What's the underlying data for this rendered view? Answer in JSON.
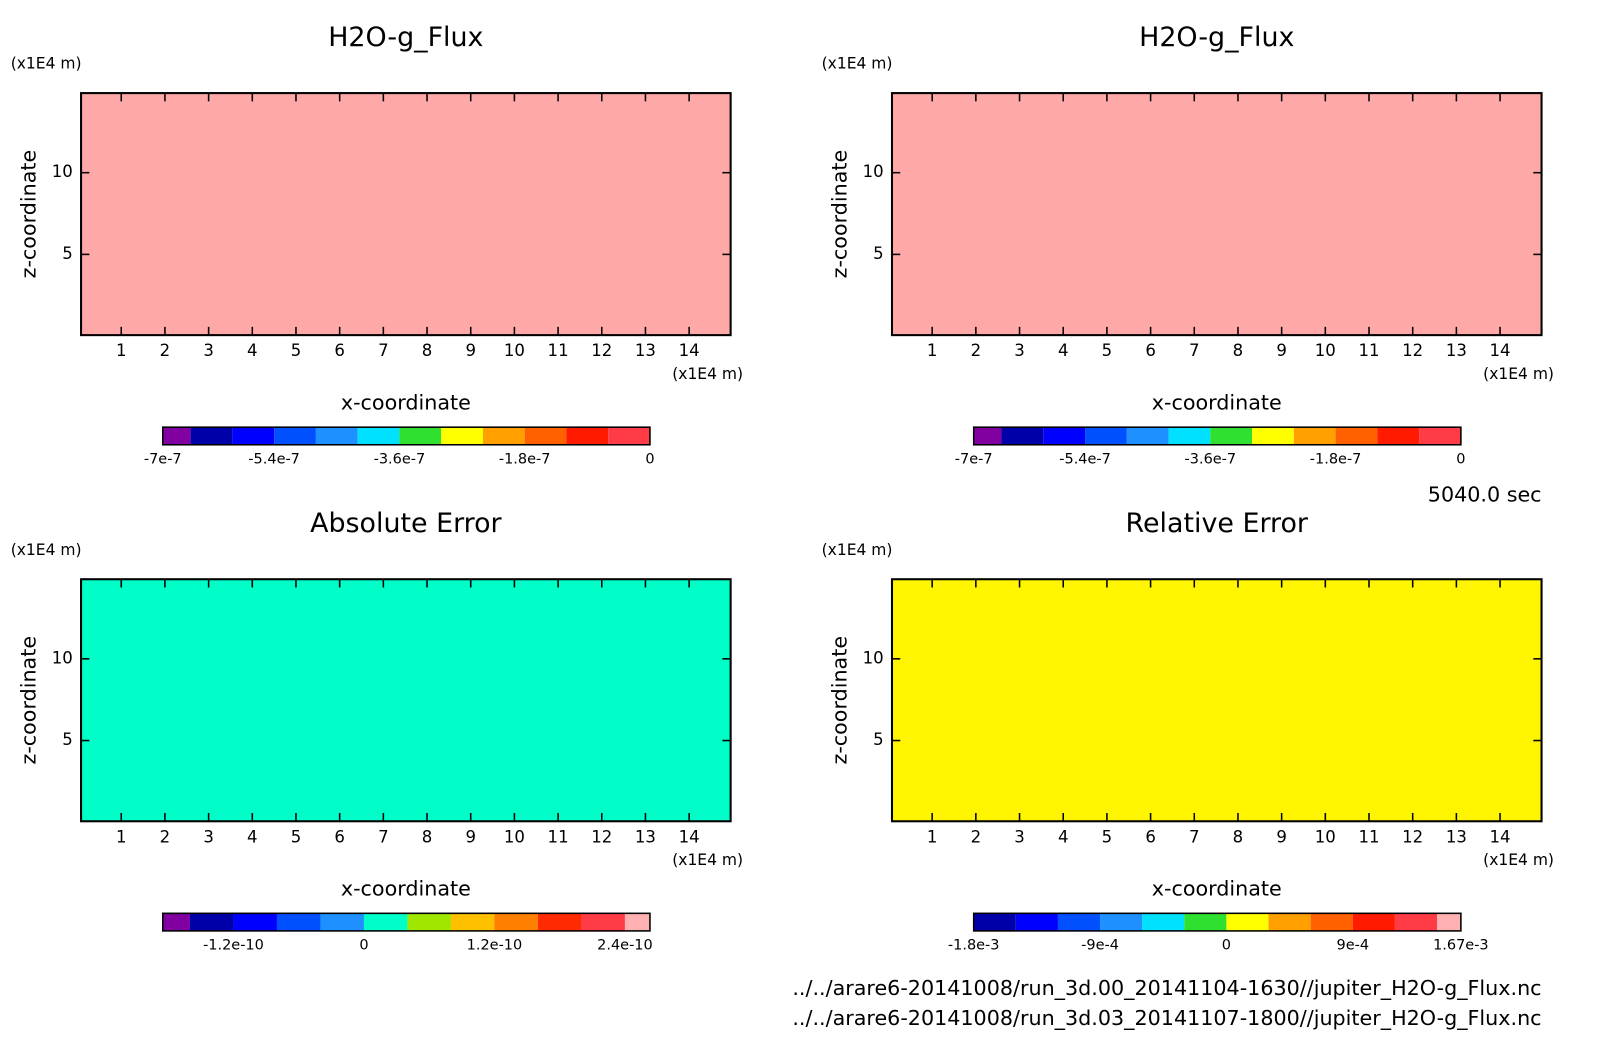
{
  "chart_data": [
    {
      "type": "contour",
      "title": "H2O-g_Flux",
      "xlabel": "x-coordinate",
      "ylabel": "z-coordinate",
      "x_unit": "(x1E4 m)",
      "y_unit": "(x1E4 m)",
      "xlim": [
        0.08,
        14.95
      ],
      "ylim": [
        0.06,
        14.87
      ],
      "xticks": [
        1,
        2,
        3,
        4,
        5,
        6,
        7,
        8,
        9,
        10,
        11,
        12,
        13,
        14
      ],
      "yticks": [
        5,
        10
      ],
      "field_color": "#ffa8a8",
      "colorbar": {
        "levels": [
          -7e-07,
          -6.6e-07,
          -6e-07,
          -5.4e-07,
          -4.8e-07,
          -4.2e-07,
          -3.6e-07,
          -3e-07,
          -2.4e-07,
          -1.8e-07,
          -1.2e-07,
          -6e-08,
          0
        ],
        "colors": [
          "#8000a0",
          "#0000a8",
          "#0000ff",
          "#0050ff",
          "#1e90ff",
          "#00e0ff",
          "#30e030",
          "#ffff00",
          "#ffa000",
          "#ff6000",
          "#ff1a00",
          "#ff3c46"
        ],
        "ticks": [
          -7e-07,
          -5.4e-07,
          -3.6e-07,
          -1.8e-07,
          0
        ]
      }
    },
    {
      "type": "contour",
      "title": "H2O-g_Flux",
      "xlabel": "x-coordinate",
      "ylabel": "z-coordinate",
      "x_unit": "(x1E4 m)",
      "y_unit": "(x1E4 m)",
      "xlim": [
        0.08,
        14.95
      ],
      "ylim": [
        0.06,
        14.87
      ],
      "xticks": [
        1,
        2,
        3,
        4,
        5,
        6,
        7,
        8,
        9,
        10,
        11,
        12,
        13,
        14
      ],
      "yticks": [
        5,
        10
      ],
      "field_color": "#ffa8a8",
      "colorbar": {
        "levels": [
          -7e-07,
          -6.6e-07,
          -6e-07,
          -5.4e-07,
          -4.8e-07,
          -4.2e-07,
          -3.6e-07,
          -3e-07,
          -2.4e-07,
          -1.8e-07,
          -1.2e-07,
          -6e-08,
          0
        ],
        "colors": [
          "#8000a0",
          "#0000a8",
          "#0000ff",
          "#0050ff",
          "#1e90ff",
          "#00e0ff",
          "#30e030",
          "#ffff00",
          "#ffa000",
          "#ff6000",
          "#ff1a00",
          "#ff3c46"
        ],
        "ticks": [
          -7e-07,
          -5.4e-07,
          -3.6e-07,
          -1.8e-07,
          0
        ]
      }
    },
    {
      "type": "contour",
      "title": "Absolute Error",
      "xlabel": "x-coordinate",
      "ylabel": "z-coordinate",
      "x_unit": "(x1E4 m)",
      "y_unit": "(x1E4 m)",
      "xlim": [
        0.08,
        14.95
      ],
      "ylim": [
        0.06,
        14.87
      ],
      "xticks": [
        1,
        2,
        3,
        4,
        5,
        6,
        7,
        8,
        9,
        10,
        11,
        12,
        13,
        14
      ],
      "yticks": [
        5,
        10
      ],
      "field_color": "#00ffc8",
      "colorbar": {
        "levels": [
          -1.85e-10,
          -1.6e-10,
          -1.2e-10,
          -8e-11,
          -4e-11,
          0,
          4e-11,
          8e-11,
          1.2e-10,
          1.6e-10,
          2e-10,
          2.4e-10,
          2.63e-10
        ],
        "colors": [
          "#8000a0",
          "#0000a8",
          "#0000ff",
          "#0050ff",
          "#1e90ff",
          "#00ffc8",
          "#a0e600",
          "#ffc000",
          "#ff8000",
          "#ff2a00",
          "#ff3c46",
          "#ffb0b0"
        ],
        "ticks": [
          -1.2e-10,
          0,
          1.2e-10,
          2.4e-10
        ]
      }
    },
    {
      "type": "contour",
      "title": "Relative Error",
      "xlabel": "x-coordinate",
      "ylabel": "z-coordinate",
      "x_unit": "(x1E4 m)",
      "y_unit": "(x1E4 m)",
      "xlim": [
        0.08,
        14.95
      ],
      "ylim": [
        0.06,
        14.87
      ],
      "xticks": [
        1,
        2,
        3,
        4,
        5,
        6,
        7,
        8,
        9,
        10,
        11,
        12,
        13,
        14
      ],
      "yticks": [
        5,
        10
      ],
      "field_color": "#fff500",
      "colorbar": {
        "levels": [
          -0.0018,
          -0.0015,
          -0.0012,
          -0.0009,
          -0.0006,
          -0.0003,
          0,
          0.0003,
          0.0006,
          0.0009,
          0.0012,
          0.0015,
          0.00167
        ],
        "colors": [
          "#0000a8",
          "#0000ff",
          "#0050ff",
          "#1e90ff",
          "#00e0ff",
          "#30e030",
          "#ffff00",
          "#ffa000",
          "#ff6000",
          "#ff1a00",
          "#ff3c46",
          "#ffb0b0"
        ],
        "ticks": [
          {
            "value": -0.0018,
            "label": "-1.8e-3"
          },
          {
            "value": -0.0009,
            "label": "-9e-4"
          },
          0,
          {
            "value": 0.0009,
            "label": "9e-4"
          },
          {
            "value": 0.00167,
            "label": "1.67e-3"
          }
        ]
      }
    }
  ],
  "time_label": "5040.0 sec",
  "files": [
    "../../arare6-20141008/run_3d.00_20141104-1630//jupiter_H2O-g_Flux.nc",
    "../../arare6-20141008/run_3d.03_20141107-1800//jupiter_H2O-g_Flux.nc"
  ]
}
